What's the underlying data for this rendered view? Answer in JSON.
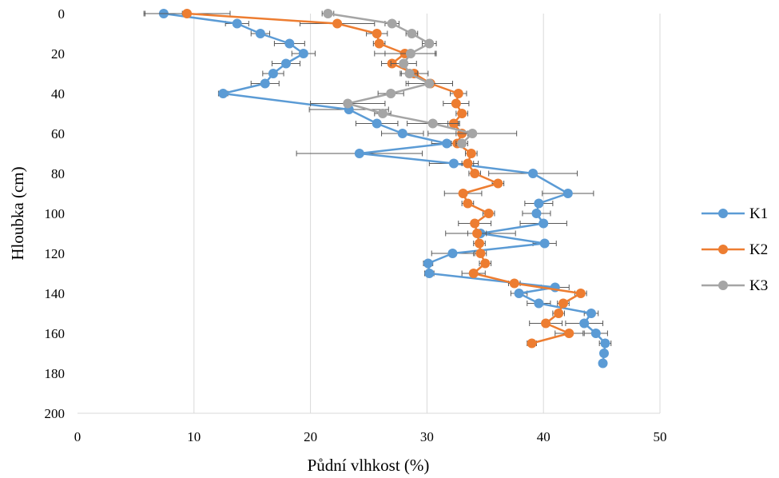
{
  "chart_data": {
    "type": "line",
    "xlabel": "Půdní vlhkost (%)",
    "ylabel": "Hloubka (cm)",
    "xlim": [
      0,
      50
    ],
    "ylim": [
      0,
      200
    ],
    "y_reversed": true,
    "x_ticks": [
      "0",
      "10",
      "20",
      "30",
      "40",
      "50"
    ],
    "y_ticks": [
      "0",
      "20",
      "40",
      "60",
      "80",
      "100",
      "120",
      "140",
      "160",
      "180",
      "200"
    ],
    "grid": "vertical",
    "legend_position": "right",
    "series": [
      {
        "name": "K1",
        "color": "#5b9bd5",
        "points": [
          {
            "x": 7.4,
            "y": 0,
            "err": 1.6
          },
          {
            "x": 13.7,
            "y": 5,
            "err": 1.0
          },
          {
            "x": 15.7,
            "y": 10,
            "err": 0.8
          },
          {
            "x": 18.2,
            "y": 15,
            "err": 1.3
          },
          {
            "x": 19.4,
            "y": 20,
            "err": 1.0
          },
          {
            "x": 17.9,
            "y": 25,
            "err": 1.2
          },
          {
            "x": 16.8,
            "y": 30,
            "err": 0.9
          },
          {
            "x": 16.1,
            "y": 35,
            "err": 1.2
          },
          {
            "x": 12.5,
            "y": 40,
            "err": 0.4
          },
          {
            "x": 23.3,
            "y": 48,
            "err": 3.4
          },
          {
            "x": 25.7,
            "y": 55,
            "err": 1.8
          },
          {
            "x": 27.9,
            "y": 60,
            "err": 1.8
          },
          {
            "x": 31.7,
            "y": 65,
            "err": 1.3
          },
          {
            "x": 24.2,
            "y": 70,
            "err": 5.4
          },
          {
            "x": 32.3,
            "y": 75,
            "err": 2.1
          },
          {
            "x": 39.1,
            "y": 80,
            "err": 3.8
          },
          {
            "x": 42.1,
            "y": 90,
            "err": 2.2
          },
          {
            "x": 39.6,
            "y": 95,
            "err": 1.2
          },
          {
            "x": 39.4,
            "y": 100,
            "err": 1.2
          },
          {
            "x": 40.0,
            "y": 105,
            "err": 2.0
          },
          {
            "x": 34.6,
            "y": 110,
            "err": 3.0
          },
          {
            "x": 40.1,
            "y": 115,
            "err": 1.0
          },
          {
            "x": 32.2,
            "y": 120,
            "err": 1.8
          },
          {
            "x": 30.1,
            "y": 125,
            "err": 0.4
          },
          {
            "x": 30.2,
            "y": 130,
            "err": 0.4
          },
          {
            "x": 41.0,
            "y": 137,
            "err": 1.2
          },
          {
            "x": 37.9,
            "y": 140,
            "err": 0.7
          },
          {
            "x": 39.6,
            "y": 145,
            "err": 1.0
          },
          {
            "x": 44.1,
            "y": 150,
            "err": 0.6
          },
          {
            "x": 43.5,
            "y": 155,
            "err": 1.6
          },
          {
            "x": 44.5,
            "y": 160,
            "err": 1.0
          },
          {
            "x": 45.3,
            "y": 165,
            "err": 0.5
          },
          {
            "x": 45.2,
            "y": 170,
            "err": 0.3
          },
          {
            "x": 45.1,
            "y": 175,
            "err": 0.3
          }
        ]
      },
      {
        "name": "K2",
        "color": "#ed7d31",
        "points": [
          {
            "x": 9.4,
            "y": 0,
            "err": 3.7
          },
          {
            "x": 22.3,
            "y": 5,
            "err": 3.2
          },
          {
            "x": 25.7,
            "y": 10,
            "err": 0.9
          },
          {
            "x": 25.9,
            "y": 15,
            "err": 0.5
          },
          {
            "x": 28.1,
            "y": 20,
            "err": 2.6
          },
          {
            "x": 27.0,
            "y": 25,
            "err": 0.9
          },
          {
            "x": 28.9,
            "y": 30,
            "err": 1.2
          },
          {
            "x": 30.3,
            "y": 35,
            "err": 1.9
          },
          {
            "x": 32.7,
            "y": 40,
            "err": 0.7
          },
          {
            "x": 32.5,
            "y": 45,
            "err": 1.1
          },
          {
            "x": 33.0,
            "y": 50,
            "err": 0.5
          },
          {
            "x": 32.3,
            "y": 55,
            "err": 0.5
          },
          {
            "x": 33.0,
            "y": 60,
            "err": 0.5
          },
          {
            "x": 32.6,
            "y": 65,
            "err": 0.5
          },
          {
            "x": 33.8,
            "y": 70,
            "err": 0.5
          },
          {
            "x": 33.5,
            "y": 75,
            "err": 0.5
          },
          {
            "x": 34.1,
            "y": 80,
            "err": 0.5
          },
          {
            "x": 36.1,
            "y": 85,
            "err": 0.5
          },
          {
            "x": 33.1,
            "y": 90,
            "err": 1.6
          },
          {
            "x": 33.5,
            "y": 95,
            "err": 0.5
          },
          {
            "x": 35.3,
            "y": 100,
            "err": 0.5
          },
          {
            "x": 34.1,
            "y": 105,
            "err": 1.4
          },
          {
            "x": 34.3,
            "y": 110,
            "err": 0.8
          },
          {
            "x": 34.5,
            "y": 115,
            "err": 0.5
          },
          {
            "x": 34.6,
            "y": 120,
            "err": 0.5
          },
          {
            "x": 35.0,
            "y": 125,
            "err": 0.5
          },
          {
            "x": 34.0,
            "y": 130,
            "err": 1.0
          },
          {
            "x": 37.5,
            "y": 135,
            "err": 0.5
          },
          {
            "x": 43.2,
            "y": 140,
            "err": 0.5
          },
          {
            "x": 41.7,
            "y": 145,
            "err": 0.5
          },
          {
            "x": 41.3,
            "y": 150,
            "err": 0.5
          },
          {
            "x": 40.2,
            "y": 155,
            "err": 1.4
          },
          {
            "x": 42.2,
            "y": 160,
            "err": 1.2
          },
          {
            "x": 39.0,
            "y": 165,
            "err": 0.4
          }
        ]
      },
      {
        "name": "K3",
        "color": "#a5a5a5",
        "points": [
          {
            "x": 21.5,
            "y": 0,
            "err": 0.5
          },
          {
            "x": 27.0,
            "y": 5,
            "err": 0.6
          },
          {
            "x": 28.7,
            "y": 10,
            "err": 0.5
          },
          {
            "x": 30.2,
            "y": 15,
            "err": 0.6
          },
          {
            "x": 28.6,
            "y": 20,
            "err": 2.2
          },
          {
            "x": 28.0,
            "y": 25,
            "err": 1.1
          },
          {
            "x": 28.5,
            "y": 30,
            "err": 0.7
          },
          {
            "x": 30.2,
            "y": 35,
            "err": 2.0
          },
          {
            "x": 26.9,
            "y": 40,
            "err": 1.1
          },
          {
            "x": 23.2,
            "y": 45,
            "err": 3.2
          },
          {
            "x": 26.2,
            "y": 50,
            "err": 0.7
          },
          {
            "x": 30.5,
            "y": 55,
            "err": 2.2
          },
          {
            "x": 33.9,
            "y": 60,
            "err": 3.8
          },
          {
            "x": 33.0,
            "y": 65,
            "err": 0.5
          }
        ]
      }
    ]
  }
}
